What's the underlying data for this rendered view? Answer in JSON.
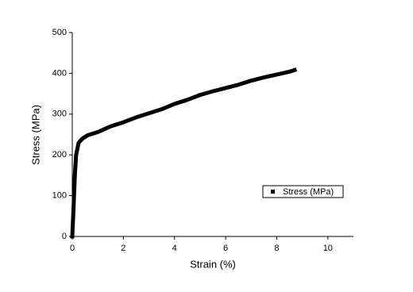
{
  "chart_data": {
    "type": "line",
    "x_label": "Strain (%)",
    "y_label": "Stress (MPa)",
    "x": [
      0,
      0.05,
      0.1,
      0.15,
      0.25,
      0.4,
      0.6,
      1,
      1.5,
      2,
      2.5,
      3,
      3.5,
      4,
      4.5,
      5,
      5.5,
      6,
      6.5,
      7,
      7.5,
      8,
      8.5,
      8.7
    ],
    "series": [
      {
        "name": "Stress (MPa)",
        "color": "#000000",
        "values": [
          0,
          70,
          150,
          200,
          230,
          240,
          248,
          256,
          270,
          280,
          292,
          302,
          312,
          325,
          335,
          347,
          356,
          364,
          372,
          382,
          390,
          397,
          404,
          408
        ]
      }
    ],
    "xlim": [
      0,
      11
    ],
    "xticks": [
      0,
      2,
      4,
      6,
      8,
      10
    ],
    "ylim": [
      0,
      500
    ],
    "yticks": [
      0,
      100,
      200,
      300,
      400,
      500
    ],
    "legend": "right"
  }
}
